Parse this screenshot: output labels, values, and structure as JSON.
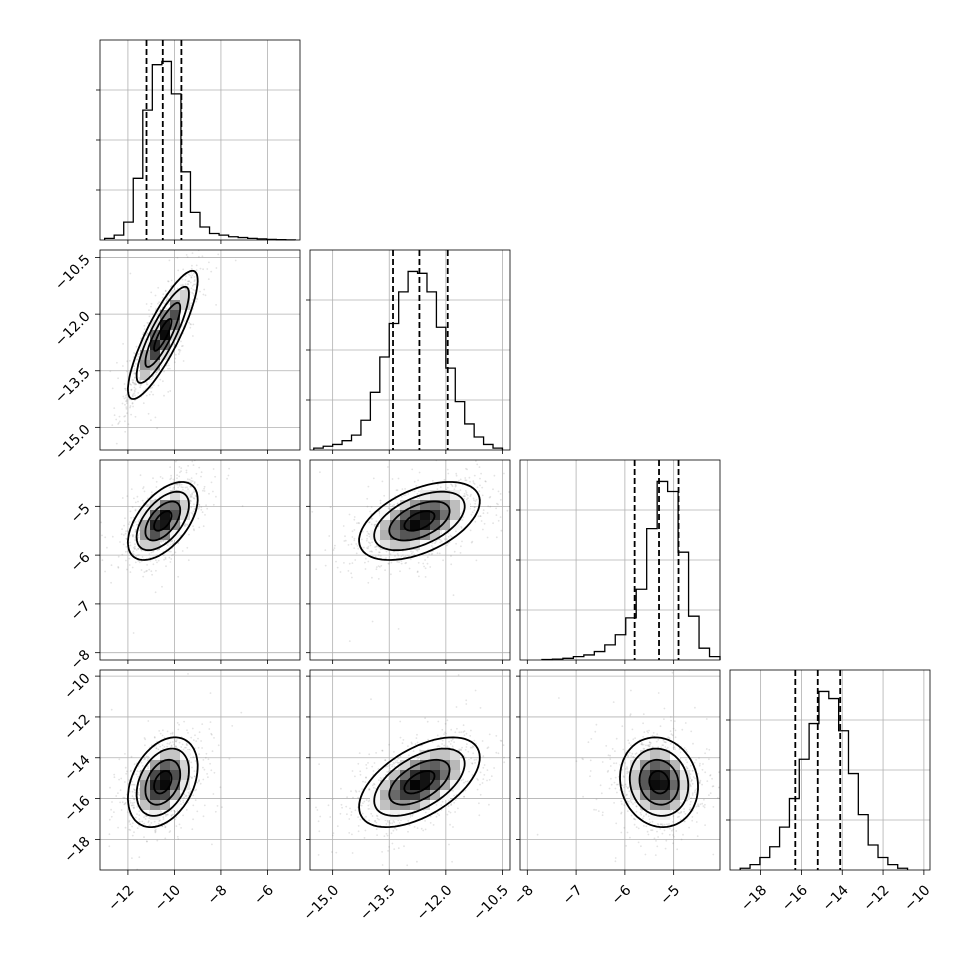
{
  "chart_data": {
    "type": "corner",
    "n_params": 4,
    "colors": {
      "lines": "#000000",
      "points": "#7f7f7f",
      "grid": "#b0b0b0",
      "density_high": "#000000"
    },
    "grid": true,
    "params": [
      {
        "range": [
          -13.2,
          -4.6
        ],
        "ticks": [
          -12,
          -10,
          -8,
          -6
        ],
        "tick_labels": [
          "−12",
          "−10",
          "−8",
          "−6"
        ],
        "peak": -10.5,
        "quantiles": [
          -11.2,
          -10.5,
          -9.7
        ],
        "hist_counts": [
          1,
          3,
          11,
          38,
          80,
          108,
          110,
          90,
          42,
          17,
          8,
          4,
          3,
          2,
          1.5,
          1,
          0.7,
          0.4,
          0.2,
          0.1
        ],
        "hist_range": [
          -13.0,
          -4.8
        ]
      },
      {
        "range": [
          -15.6,
          -10.3
        ],
        "ticks": [
          -15.0,
          -13.5,
          -12.0,
          -10.5
        ],
        "tick_labels": [
          "−15.0",
          "−13.5",
          "−12.0",
          "−10.5"
        ],
        "peak": -12.7,
        "quantiles": [
          -13.4,
          -12.7,
          -11.95
        ],
        "hist_counts": [
          1,
          2,
          3,
          5,
          8,
          16,
          31,
          50,
          68,
          85,
          96,
          95,
          85,
          66,
          44,
          26,
          14,
          7,
          3,
          1
        ],
        "hist_range": [
          -15.5,
          -10.5
        ]
      },
      {
        "range": [
          -8.15,
          -4.05
        ],
        "ticks": [
          -8,
          -7,
          -6,
          -5
        ],
        "tick_labels": [
          "−8",
          "−7",
          "−6",
          "−5"
        ],
        "peak": -5.3,
        "quantiles": [
          -5.8,
          -5.3,
          -4.9
        ],
        "hist_counts": [
          0.3,
          0.5,
          1,
          2,
          3,
          5,
          9,
          15,
          25,
          42,
          78,
          106,
          100,
          64,
          26,
          7,
          2
        ],
        "hist_range": [
          -7.7,
          -4.05
        ]
      },
      {
        "range": [
          -19.5,
          -9.7
        ],
        "ticks": [
          -18,
          -16,
          -14,
          -12,
          -10
        ],
        "tick_labels": [
          "−18",
          "−16",
          "−14",
          "−12",
          "−10"
        ],
        "peak": -15.2,
        "quantiles": [
          -16.3,
          -15.2,
          -14.1
        ],
        "hist_counts": [
          1,
          3,
          7,
          13,
          24,
          40,
          62,
          82,
          100,
          96,
          78,
          54,
          31,
          14,
          7,
          3,
          1
        ],
        "hist_range": [
          -19.0,
          -10.8
        ]
      }
    ],
    "pairs": [
      {
        "row": 1,
        "col": 0,
        "mean": [
          -10.5,
          -12.55
        ],
        "sd": [
          0.75,
          0.85
        ],
        "rho": 0.85
      },
      {
        "row": 2,
        "col": 0,
        "mean": [
          -10.5,
          -5.3
        ],
        "sd": [
          0.75,
          0.4
        ],
        "rho": 0.55
      },
      {
        "row": 2,
        "col": 1,
        "mean": [
          -12.7,
          -5.3
        ],
        "sd": [
          0.8,
          0.4
        ],
        "rho": 0.5
      },
      {
        "row": 3,
        "col": 0,
        "mean": [
          -10.5,
          -15.2
        ],
        "sd": [
          0.75,
          1.1
        ],
        "rho": 0.35
      },
      {
        "row": 3,
        "col": 1,
        "mean": [
          -12.7,
          -15.2
        ],
        "sd": [
          0.8,
          1.1
        ],
        "rho": 0.55
      },
      {
        "row": 3,
        "col": 2,
        "mean": [
          -5.3,
          -15.2
        ],
        "sd": [
          0.4,
          1.1
        ],
        "rho": -0.1
      }
    ]
  }
}
